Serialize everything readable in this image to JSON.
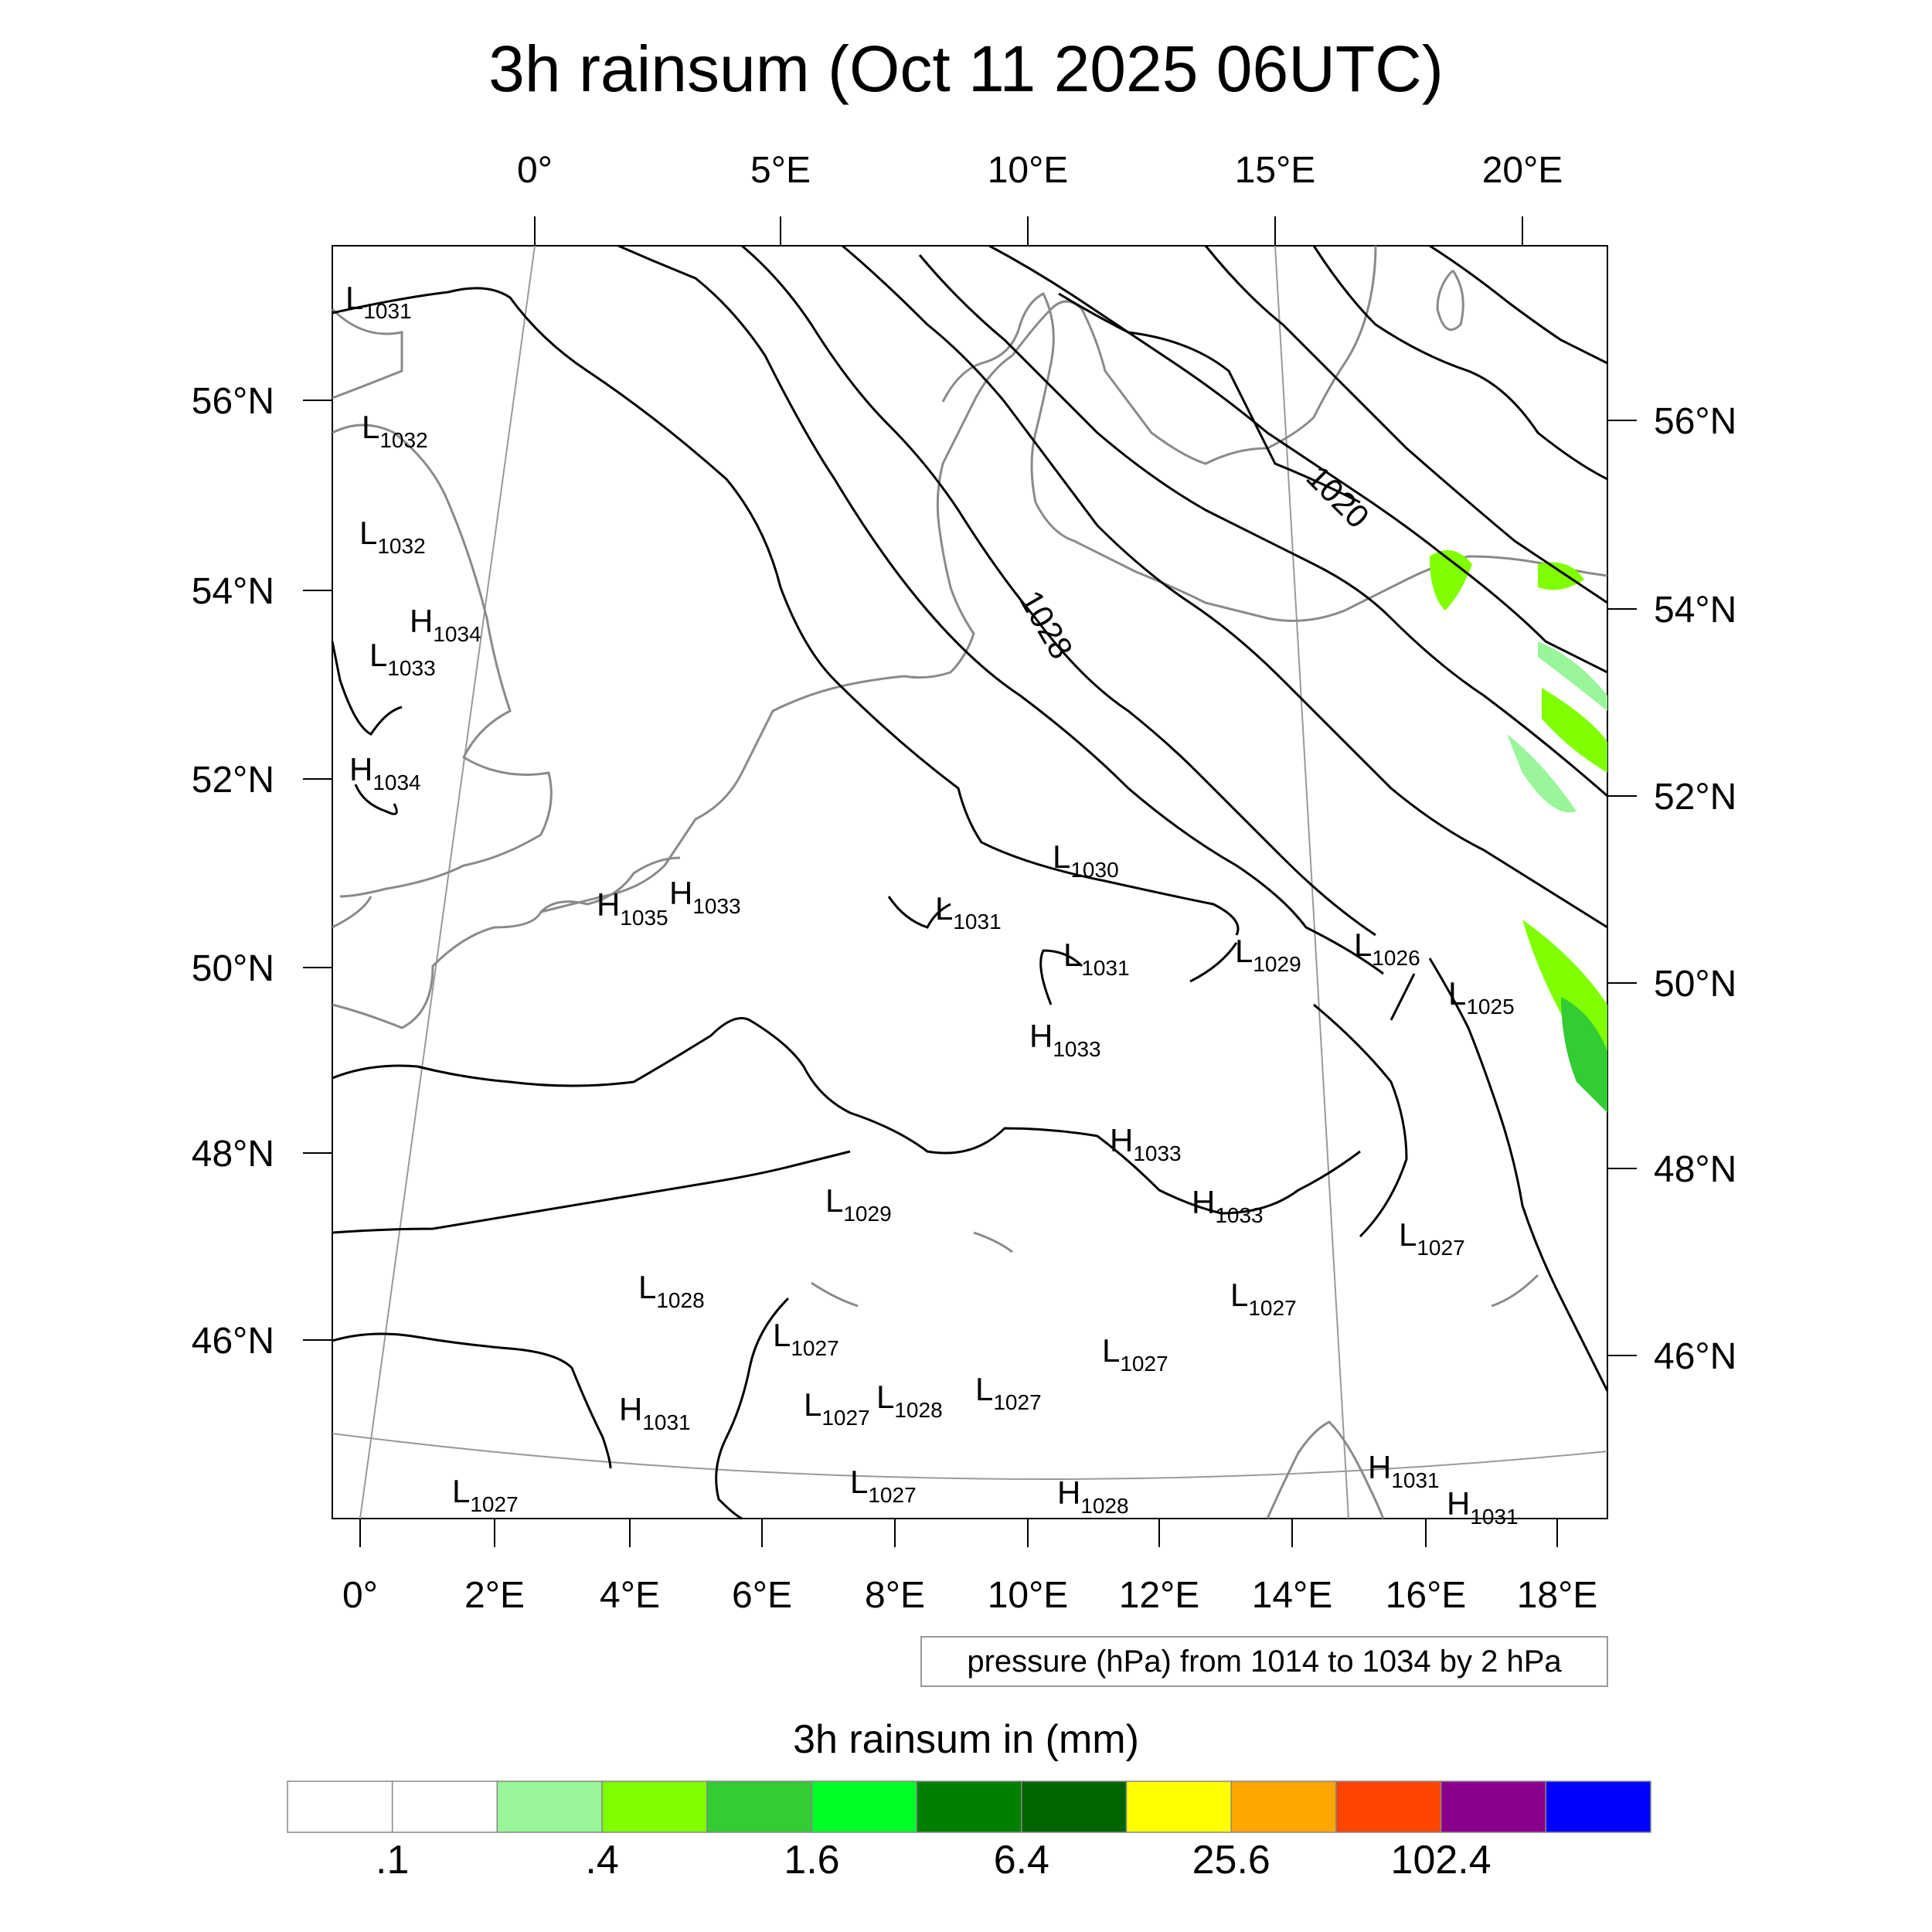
{
  "title": "3h rainsum (Oct 11 2025 06UTC)",
  "map": {
    "top_lon_ticks": [
      "0°",
      "5°E",
      "10°E",
      "15°E",
      "20°E"
    ],
    "bottom_lon_ticks": [
      "0°",
      "2°E",
      "4°E",
      "6°E",
      "8°E",
      "10°E",
      "12°E",
      "14°E",
      "16°E",
      "18°E"
    ],
    "left_lat_ticks": [
      "56°N",
      "54°N",
      "52°N",
      "50°N",
      "48°N",
      "46°N"
    ],
    "right_lat_ticks": [
      "56°N",
      "54°N",
      "52°N",
      "50°N",
      "48°N",
      "46°N"
    ],
    "contour_labels": [
      "1020",
      "1028"
    ],
    "pressure_centers": [
      {
        "t": "L",
        "v": "1031"
      },
      {
        "t": "L",
        "v": "1032"
      },
      {
        "t": "L",
        "v": "1032"
      },
      {
        "t": "H",
        "v": "1034"
      },
      {
        "t": "L",
        "v": "1033"
      },
      {
        "t": "H",
        "v": "1034"
      },
      {
        "t": "H",
        "v": "1035"
      },
      {
        "t": "H",
        "v": "1033"
      },
      {
        "t": "L",
        "v": "1030"
      },
      {
        "t": "L",
        "v": "1031"
      },
      {
        "t": "L",
        "v": "1031"
      },
      {
        "t": "L",
        "v": "1029"
      },
      {
        "t": "L",
        "v": "1026"
      },
      {
        "t": "L",
        "v": "1025"
      },
      {
        "t": "H",
        "v": "1033"
      },
      {
        "t": "H",
        "v": "1033"
      },
      {
        "t": "H",
        "v": "1033"
      },
      {
        "t": "L",
        "v": "1029"
      },
      {
        "t": "L",
        "v": "1027"
      },
      {
        "t": "L",
        "v": "1028"
      },
      {
        "t": "L",
        "v": "1027"
      },
      {
        "t": "L",
        "v": "1027"
      },
      {
        "t": "L",
        "v": "1027"
      },
      {
        "t": "H",
        "v": "1031"
      },
      {
        "t": "L",
        "v": "1027"
      },
      {
        "t": "L",
        "v": "1028"
      },
      {
        "t": "L",
        "v": "1027"
      },
      {
        "t": "H",
        "v": "1028"
      },
      {
        "t": "L",
        "v": "1027"
      },
      {
        "t": "L",
        "v": "1027"
      },
      {
        "t": "H",
        "v": "1031"
      },
      {
        "t": "H",
        "v": "1031"
      }
    ]
  },
  "caption": "pressure (hPa) from 1014 to 1034 by 2 hPa",
  "colorbar": {
    "title": "3h rainsum in (mm)",
    "colors": [
      "#ffffff",
      "#ffffff",
      "#99f599",
      "#80ff00",
      "#33cc33",
      "#00ff26",
      "#008000",
      "#006600",
      "#ffff00",
      "#ffa500",
      "#ff4500",
      "#8b008b",
      "#0000ff"
    ],
    "labels": [
      ".1",
      ".4",
      "1.6",
      "6.4",
      "25.6",
      "102.4"
    ]
  }
}
